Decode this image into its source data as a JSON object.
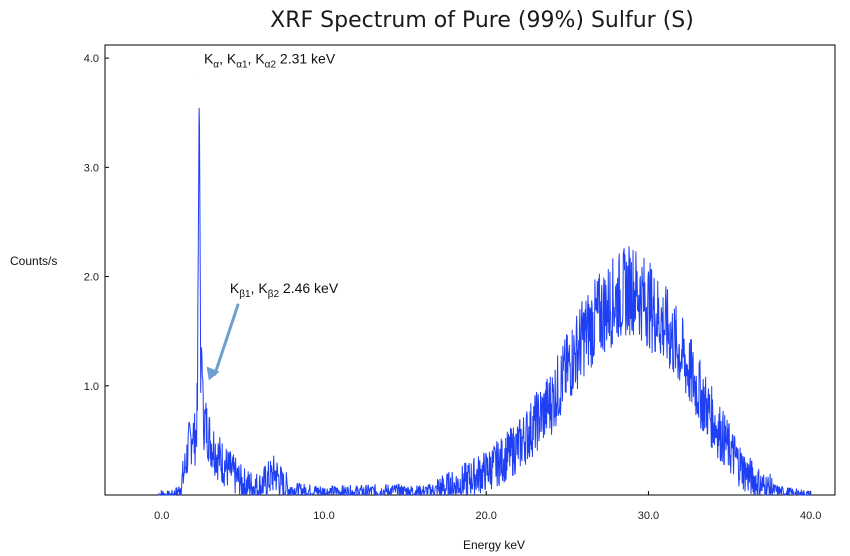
{
  "chart_data": {
    "type": "line",
    "title": "XRF Spectrum of Pure (99%) Sulfur (S)",
    "xlabel": "Energy keV",
    "ylabel": "Counts/s",
    "xlim": [
      -3.5,
      41.5
    ],
    "ylim": [
      0,
      4.12
    ],
    "xticks": [
      {
        "value": 0,
        "label": "0.0"
      },
      {
        "value": 10,
        "label": "10.0"
      },
      {
        "value": 20,
        "label": "20.0"
      },
      {
        "value": 30,
        "label": "30.0"
      },
      {
        "value": 40,
        "label": "40.0"
      }
    ],
    "yticks": [
      {
        "value": 1,
        "label": "1.0"
      },
      {
        "value": 2,
        "label": "2.0"
      },
      {
        "value": 3,
        "label": "3.0"
      },
      {
        "value": 4,
        "label": "4.0"
      }
    ],
    "grid": false,
    "legend": "none",
    "series": [
      {
        "color": "#1f3ff5",
        "x": [
          -0.2,
          0.3,
          0.6,
          0.9,
          1.1,
          1.3,
          1.5,
          1.6,
          1.7,
          1.8,
          1.9,
          2.0,
          2.1,
          2.2,
          2.31,
          2.4,
          2.46,
          2.55,
          2.7,
          3.0,
          3.5,
          4.0,
          5.0,
          6.0,
          7.0,
          7.5,
          8.0,
          9.0,
          10.0,
          12.0,
          14.0,
          16.0,
          17.0,
          18.0,
          19.0,
          20.0,
          21.0,
          22.0,
          23.0,
          24.0,
          25.0,
          26.0,
          27.0,
          28.0,
          29.0,
          30.0,
          31.0,
          32.0,
          33.0,
          34.0,
          35.0,
          36.0,
          37.0,
          38.0,
          39.0,
          40.0
        ],
        "values": [
          0.01,
          0.0,
          0.0,
          0.02,
          0.05,
          0.15,
          0.3,
          0.4,
          0.45,
          0.5,
          0.62,
          0.5,
          0.55,
          0.8,
          3.82,
          1.2,
          1.38,
          0.7,
          0.65,
          0.5,
          0.35,
          0.25,
          0.1,
          0.07,
          0.2,
          0.08,
          0.05,
          0.04,
          0.03,
          0.03,
          0.04,
          0.03,
          0.05,
          0.08,
          0.15,
          0.22,
          0.32,
          0.45,
          0.65,
          0.85,
          1.15,
          1.45,
          1.65,
          1.8,
          1.9,
          1.75,
          1.55,
          1.3,
          0.98,
          0.68,
          0.42,
          0.2,
          0.08,
          0.03,
          0.01,
          0.0
        ]
      }
    ],
    "annotations": [
      {
        "base": [
          "K",
          "K",
          "K"
        ],
        "subs": [
          "α",
          "α1",
          "α2"
        ],
        "value_text": "2.31 keV",
        "x": 2.6,
        "y": 3.95
      },
      {
        "base": [
          "K",
          "K"
        ],
        "subs": [
          "β1",
          "β2"
        ],
        "value_text": "2.46 keV",
        "x": 4.2,
        "y": 1.85,
        "arrow_to": [
          2.9,
          1.05
        ]
      }
    ],
    "arrow_color": "#6f9fd0"
  }
}
